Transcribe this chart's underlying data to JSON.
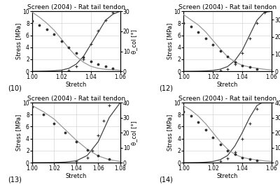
{
  "title": "Screen (2004) - Rat tail tendon",
  "xlabel": "Stretch",
  "ylabel_left": "Stress [MPa]",
  "ylabel_right": "θ_col [°]",
  "panels": [
    {
      "label": "(10)",
      "xlim": [
        1.0,
        1.06
      ],
      "ylim_left": [
        0,
        10
      ],
      "ylim_right": [
        0,
        30
      ],
      "stress_x": [
        1.0,
        1.005,
        1.01,
        1.015,
        1.02,
        1.025,
        1.03,
        1.035,
        1.04,
        1.045,
        1.05,
        1.055,
        1.06
      ],
      "stress_y": [
        0.0,
        0.02,
        0.05,
        0.1,
        0.2,
        0.5,
        1.2,
        2.5,
        4.5,
        6.5,
        8.5,
        9.5,
        10.0
      ],
      "angle_x": [
        1.0,
        1.005,
        1.01,
        1.015,
        1.02,
        1.025,
        1.03,
        1.035,
        1.04,
        1.045,
        1.05,
        1.055,
        1.06
      ],
      "angle_y": [
        29.5,
        27.0,
        24.0,
        20.5,
        16.0,
        11.5,
        7.5,
        4.5,
        2.5,
        1.5,
        1.0,
        0.8,
        0.5
      ],
      "data_stress_x": [
        1.02,
        1.025,
        1.03,
        1.035,
        1.04,
        1.045,
        1.05,
        1.055
      ],
      "data_stress_y": [
        0.05,
        0.2,
        0.8,
        2.0,
        4.5,
        6.8,
        8.5,
        9.8
      ],
      "data_angle_x": [
        1.0,
        1.005,
        1.01,
        1.015,
        1.02,
        1.025,
        1.03,
        1.035,
        1.04,
        1.045,
        1.05,
        1.055
      ],
      "data_angle_y": [
        25.0,
        23.0,
        21.0,
        18.5,
        15.0,
        12.0,
        9.0,
        7.0,
        5.0,
        3.5,
        2.5,
        1.5
      ]
    },
    {
      "label": "(12)",
      "xlim": [
        1.0,
        1.06
      ],
      "ylim_left": [
        0,
        10
      ],
      "ylim_right": [
        0,
        35
      ],
      "stress_x": [
        1.0,
        1.005,
        1.01,
        1.015,
        1.02,
        1.025,
        1.03,
        1.035,
        1.04,
        1.045,
        1.05,
        1.055,
        1.06
      ],
      "stress_y": [
        0.0,
        0.01,
        0.03,
        0.07,
        0.15,
        0.35,
        0.8,
        1.8,
        3.5,
        6.0,
        8.5,
        9.8,
        10.0
      ],
      "angle_x": [
        1.0,
        1.005,
        1.01,
        1.015,
        1.02,
        1.025,
        1.03,
        1.035,
        1.04,
        1.045,
        1.05,
        1.055,
        1.06
      ],
      "angle_y": [
        33.0,
        30.0,
        27.0,
        23.0,
        18.0,
        13.0,
        8.5,
        5.5,
        3.5,
        2.5,
        1.8,
        1.2,
        0.8
      ],
      "data_stress_x": [
        1.025,
        1.03,
        1.035,
        1.04,
        1.045,
        1.05,
        1.055,
        1.06
      ],
      "data_stress_y": [
        0.1,
        0.4,
        1.2,
        3.0,
        5.5,
        8.0,
        9.8,
        10.2
      ],
      "data_angle_x": [
        1.0,
        1.005,
        1.01,
        1.015,
        1.02,
        1.025,
        1.03,
        1.035,
        1.04,
        1.045,
        1.05
      ],
      "data_angle_y": [
        28.0,
        26.0,
        23.0,
        19.0,
        15.5,
        12.0,
        8.5,
        5.5,
        3.5,
        2.5,
        1.5
      ]
    },
    {
      "label": "(13)",
      "xlim": [
        1.0,
        1.08
      ],
      "ylim_left": [
        0,
        10
      ],
      "ylim_right": [
        0,
        40
      ],
      "stress_x": [
        1.0,
        1.01,
        1.02,
        1.03,
        1.04,
        1.05,
        1.06,
        1.07,
        1.08
      ],
      "stress_y": [
        0.0,
        0.01,
        0.03,
        0.1,
        0.3,
        1.2,
        3.5,
        7.5,
        10.0
      ],
      "angle_x": [
        1.0,
        1.01,
        1.02,
        1.03,
        1.04,
        1.05,
        1.06,
        1.07,
        1.08
      ],
      "angle_y": [
        38.0,
        34.0,
        29.0,
        22.0,
        15.0,
        9.0,
        4.5,
        2.0,
        0.8
      ],
      "data_stress_x": [
        1.04,
        1.05,
        1.055,
        1.06,
        1.065,
        1.07,
        1.075
      ],
      "data_stress_y": [
        0.2,
        0.8,
        2.0,
        4.5,
        7.0,
        9.5,
        11.0
      ],
      "data_angle_x": [
        1.0,
        1.01,
        1.02,
        1.03,
        1.04,
        1.05,
        1.06,
        1.07
      ],
      "data_angle_y": [
        37.0,
        32.0,
        26.0,
        20.0,
        14.0,
        8.5,
        4.5,
        2.5
      ]
    },
    {
      "label": "(14)",
      "xlim": [
        1.0,
        1.06
      ],
      "ylim_left": [
        0,
        10
      ],
      "ylim_right": [
        0,
        40
      ],
      "stress_x": [
        1.0,
        1.005,
        1.01,
        1.015,
        1.02,
        1.025,
        1.03,
        1.035,
        1.04,
        1.045,
        1.05,
        1.055,
        1.06
      ],
      "stress_y": [
        0.0,
        0.01,
        0.03,
        0.08,
        0.2,
        0.5,
        1.2,
        2.8,
        5.0,
        7.5,
        9.5,
        10.2,
        10.5
      ],
      "angle_x": [
        1.0,
        1.005,
        1.01,
        1.015,
        1.02,
        1.025,
        1.03,
        1.035,
        1.04,
        1.045,
        1.05,
        1.055,
        1.06
      ],
      "angle_y": [
        38.0,
        35.0,
        31.0,
        26.0,
        20.0,
        14.0,
        9.0,
        5.5,
        3.5,
        2.5,
        1.8,
        1.2,
        0.8
      ],
      "data_stress_x": [
        1.025,
        1.03,
        1.035,
        1.04,
        1.045,
        1.05,
        1.055
      ],
      "data_stress_y": [
        0.2,
        0.7,
        1.8,
        4.0,
        6.5,
        9.0,
        10.5
      ],
      "data_angle_x": [
        1.0,
        1.005,
        1.01,
        1.015,
        1.02,
        1.025,
        1.03,
        1.035,
        1.04,
        1.045,
        1.05
      ],
      "data_angle_y": [
        34.0,
        31.0,
        27.0,
        22.0,
        17.0,
        12.0,
        8.0,
        5.5,
        3.5,
        2.5,
        1.5
      ]
    }
  ],
  "line_color_stress": "#444444",
  "line_color_angle": "#999999",
  "marker_color": "#333333",
  "bg_color": "#ffffff",
  "grid_color": "#cccccc",
  "label_fontsize": 6,
  "tick_fontsize": 5.5,
  "title_fontsize": 6.5
}
